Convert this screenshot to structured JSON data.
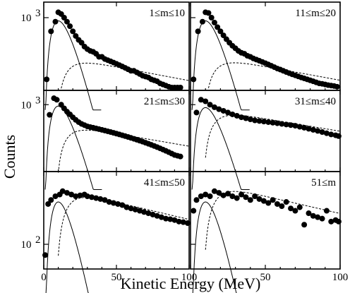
{
  "chart_data": {
    "type": "scatter",
    "layout": "3x2 grid of panels, shared axes",
    "xlabel": "Kinetic Energy (MeV)",
    "ylabel": "Counts",
    "xlim": [
      0,
      100
    ],
    "x_ticks": [
      0,
      50,
      100
    ],
    "x_tick_labels": [
      "0",
      "50",
      "100"
    ],
    "y_scale": "log",
    "grid": false,
    "legend": "none",
    "rows": [
      {
        "y_tick_label": "10",
        "y_tick_exponent": "3",
        "y_tick_value": 1000,
        "ylim": [
          150,
          1500
        ]
      },
      {
        "y_tick_label": "10",
        "y_tick_exponent": "3",
        "y_tick_value": 1000,
        "ylim": [
          150,
          1500
        ]
      },
      {
        "y_tick_label": "10",
        "y_tick_exponent": "2",
        "y_tick_value": 100,
        "ylim": [
          60,
          450
        ]
      }
    ],
    "panels": [
      {
        "label": "1≤m≤10",
        "points": [
          [
            2,
            200
          ],
          [
            5,
            700
          ],
          [
            8,
            900
          ],
          [
            10,
            1150
          ],
          [
            12,
            1100
          ],
          [
            14,
            1000
          ],
          [
            16,
            900
          ],
          [
            18,
            800
          ],
          [
            20,
            700
          ],
          [
            22,
            620
          ],
          [
            24,
            560
          ],
          [
            26,
            520
          ],
          [
            28,
            470
          ],
          [
            30,
            440
          ],
          [
            32,
            420
          ],
          [
            34,
            410
          ],
          [
            36,
            390
          ],
          [
            38,
            360
          ],
          [
            40,
            360
          ],
          [
            42,
            340
          ],
          [
            44,
            330
          ],
          [
            46,
            320
          ],
          [
            48,
            310
          ],
          [
            50,
            300
          ],
          [
            52,
            290
          ],
          [
            54,
            280
          ],
          [
            56,
            270
          ],
          [
            58,
            260
          ],
          [
            60,
            250
          ],
          [
            62,
            250
          ],
          [
            64,
            240
          ],
          [
            66,
            230
          ],
          [
            68,
            220
          ],
          [
            70,
            215
          ],
          [
            72,
            210
          ],
          [
            74,
            200
          ],
          [
            76,
            195
          ],
          [
            78,
            190
          ],
          [
            80,
            180
          ],
          [
            82,
            175
          ],
          [
            84,
            170
          ],
          [
            86,
            165
          ],
          [
            88,
            160
          ],
          [
            90,
            155
          ],
          [
            92,
            150
          ],
          [
            94,
            145
          ]
        ]
      },
      {
        "label": "11≤m≤20",
        "points": [
          [
            2,
            200
          ],
          [
            5,
            700
          ],
          [
            8,
            900
          ],
          [
            10,
            1150
          ],
          [
            12,
            1130
          ],
          [
            14,
            1000
          ],
          [
            16,
            880
          ],
          [
            18,
            780
          ],
          [
            20,
            700
          ],
          [
            22,
            630
          ],
          [
            24,
            570
          ],
          [
            26,
            520
          ],
          [
            28,
            480
          ],
          [
            30,
            450
          ],
          [
            32,
            420
          ],
          [
            34,
            400
          ],
          [
            36,
            390
          ],
          [
            38,
            370
          ],
          [
            40,
            360
          ],
          [
            42,
            345
          ],
          [
            44,
            335
          ],
          [
            46,
            325
          ],
          [
            48,
            315
          ],
          [
            50,
            305
          ],
          [
            52,
            295
          ],
          [
            54,
            285
          ],
          [
            56,
            275
          ],
          [
            58,
            265
          ],
          [
            60,
            258
          ],
          [
            62,
            250
          ],
          [
            64,
            242
          ],
          [
            66,
            235
          ],
          [
            68,
            228
          ],
          [
            70,
            222
          ],
          [
            72,
            216
          ],
          [
            74,
            210
          ],
          [
            76,
            205
          ],
          [
            78,
            200
          ],
          [
            80,
            195
          ],
          [
            82,
            190
          ],
          [
            84,
            185
          ],
          [
            86,
            180
          ],
          [
            88,
            178
          ],
          [
            90,
            175
          ],
          [
            92,
            172
          ],
          [
            94,
            170
          ],
          [
            96,
            168
          ],
          [
            98,
            165
          ]
        ]
      },
      {
        "label": "21≤m≤30",
        "points": [
          [
            4,
            750
          ],
          [
            7,
            1200
          ],
          [
            9,
            1150
          ],
          [
            12,
            1000
          ],
          [
            14,
            900
          ],
          [
            16,
            820
          ],
          [
            18,
            760
          ],
          [
            20,
            700
          ],
          [
            22,
            650
          ],
          [
            24,
            610
          ],
          [
            26,
            580
          ],
          [
            28,
            560
          ],
          [
            30,
            540
          ],
          [
            32,
            530
          ],
          [
            34,
            520
          ],
          [
            36,
            510
          ],
          [
            38,
            500
          ],
          [
            40,
            490
          ],
          [
            42,
            480
          ],
          [
            44,
            470
          ],
          [
            46,
            460
          ],
          [
            48,
            450
          ],
          [
            50,
            440
          ],
          [
            52,
            430
          ],
          [
            54,
            420
          ],
          [
            56,
            410
          ],
          [
            58,
            400
          ],
          [
            60,
            390
          ],
          [
            62,
            380
          ],
          [
            64,
            370
          ],
          [
            66,
            360
          ],
          [
            68,
            350
          ],
          [
            70,
            340
          ],
          [
            72,
            330
          ],
          [
            74,
            320
          ],
          [
            76,
            310
          ],
          [
            78,
            300
          ],
          [
            80,
            290
          ],
          [
            82,
            280
          ],
          [
            84,
            270
          ],
          [
            86,
            260
          ],
          [
            88,
            250
          ],
          [
            90,
            240
          ],
          [
            92,
            235
          ],
          [
            94,
            230
          ]
        ]
      },
      {
        "label": "31≤m≤40",
        "points": [
          [
            4,
            800
          ],
          [
            7,
            1150
          ],
          [
            10,
            1100
          ],
          [
            13,
            1000
          ],
          [
            16,
            930
          ],
          [
            19,
            880
          ],
          [
            22,
            840
          ],
          [
            25,
            800
          ],
          [
            28,
            760
          ],
          [
            31,
            730
          ],
          [
            34,
            700
          ],
          [
            37,
            680
          ],
          [
            40,
            660
          ],
          [
            43,
            640
          ],
          [
            46,
            630
          ],
          [
            49,
            620
          ],
          [
            52,
            610
          ],
          [
            55,
            600
          ],
          [
            58,
            590
          ],
          [
            61,
            580
          ],
          [
            64,
            570
          ],
          [
            67,
            560
          ],
          [
            70,
            550
          ],
          [
            73,
            535
          ],
          [
            76,
            520
          ],
          [
            79,
            505
          ],
          [
            82,
            490
          ],
          [
            85,
            475
          ],
          [
            88,
            460
          ],
          [
            91,
            445
          ],
          [
            94,
            430
          ],
          [
            97,
            420
          ],
          [
            99,
            410
          ]
        ]
      },
      {
        "label": "41≤m≤50",
        "points": [
          [
            1,
            80
          ],
          [
            3,
            230
          ],
          [
            5,
            250
          ],
          [
            8,
            270
          ],
          [
            11,
            280
          ],
          [
            13,
            300
          ],
          [
            16,
            290
          ],
          [
            19,
            280
          ],
          [
            22,
            270
          ],
          [
            25,
            275
          ],
          [
            28,
            280
          ],
          [
            30,
            270
          ],
          [
            33,
            265
          ],
          [
            36,
            260
          ],
          [
            39,
            255
          ],
          [
            42,
            250
          ],
          [
            45,
            240
          ],
          [
            48,
            235
          ],
          [
            51,
            230
          ],
          [
            54,
            225
          ],
          [
            57,
            215
          ],
          [
            60,
            210
          ],
          [
            63,
            205
          ],
          [
            66,
            200
          ],
          [
            69,
            195
          ],
          [
            72,
            190
          ],
          [
            75,
            185
          ],
          [
            78,
            180
          ],
          [
            81,
            175
          ],
          [
            84,
            170
          ],
          [
            87,
            168
          ],
          [
            90,
            165
          ],
          [
            93,
            160
          ],
          [
            96,
            158
          ],
          [
            99,
            155
          ]
        ]
      },
      {
        "label": "51≤m",
        "points": [
          [
            2,
            200
          ],
          [
            4,
            250
          ],
          [
            7,
            270
          ],
          [
            10,
            280
          ],
          [
            13,
            270
          ],
          [
            16,
            300
          ],
          [
            19,
            290
          ],
          [
            22,
            275
          ],
          [
            25,
            285
          ],
          [
            28,
            270
          ],
          [
            31,
            260
          ],
          [
            34,
            280
          ],
          [
            37,
            265
          ],
          [
            40,
            250
          ],
          [
            43,
            270
          ],
          [
            46,
            255
          ],
          [
            49,
            245
          ],
          [
            52,
            235
          ],
          [
            55,
            250
          ],
          [
            58,
            230
          ],
          [
            61,
            220
          ],
          [
            64,
            240
          ],
          [
            67,
            210
          ],
          [
            70,
            200
          ],
          [
            73,
            215
          ],
          [
            76,
            150
          ],
          [
            79,
            190
          ],
          [
            82,
            180
          ],
          [
            85,
            175
          ],
          [
            88,
            170
          ],
          [
            91,
            200
          ],
          [
            94,
            160
          ],
          [
            97,
            165
          ],
          [
            99,
            160
          ]
        ]
      }
    ]
  }
}
